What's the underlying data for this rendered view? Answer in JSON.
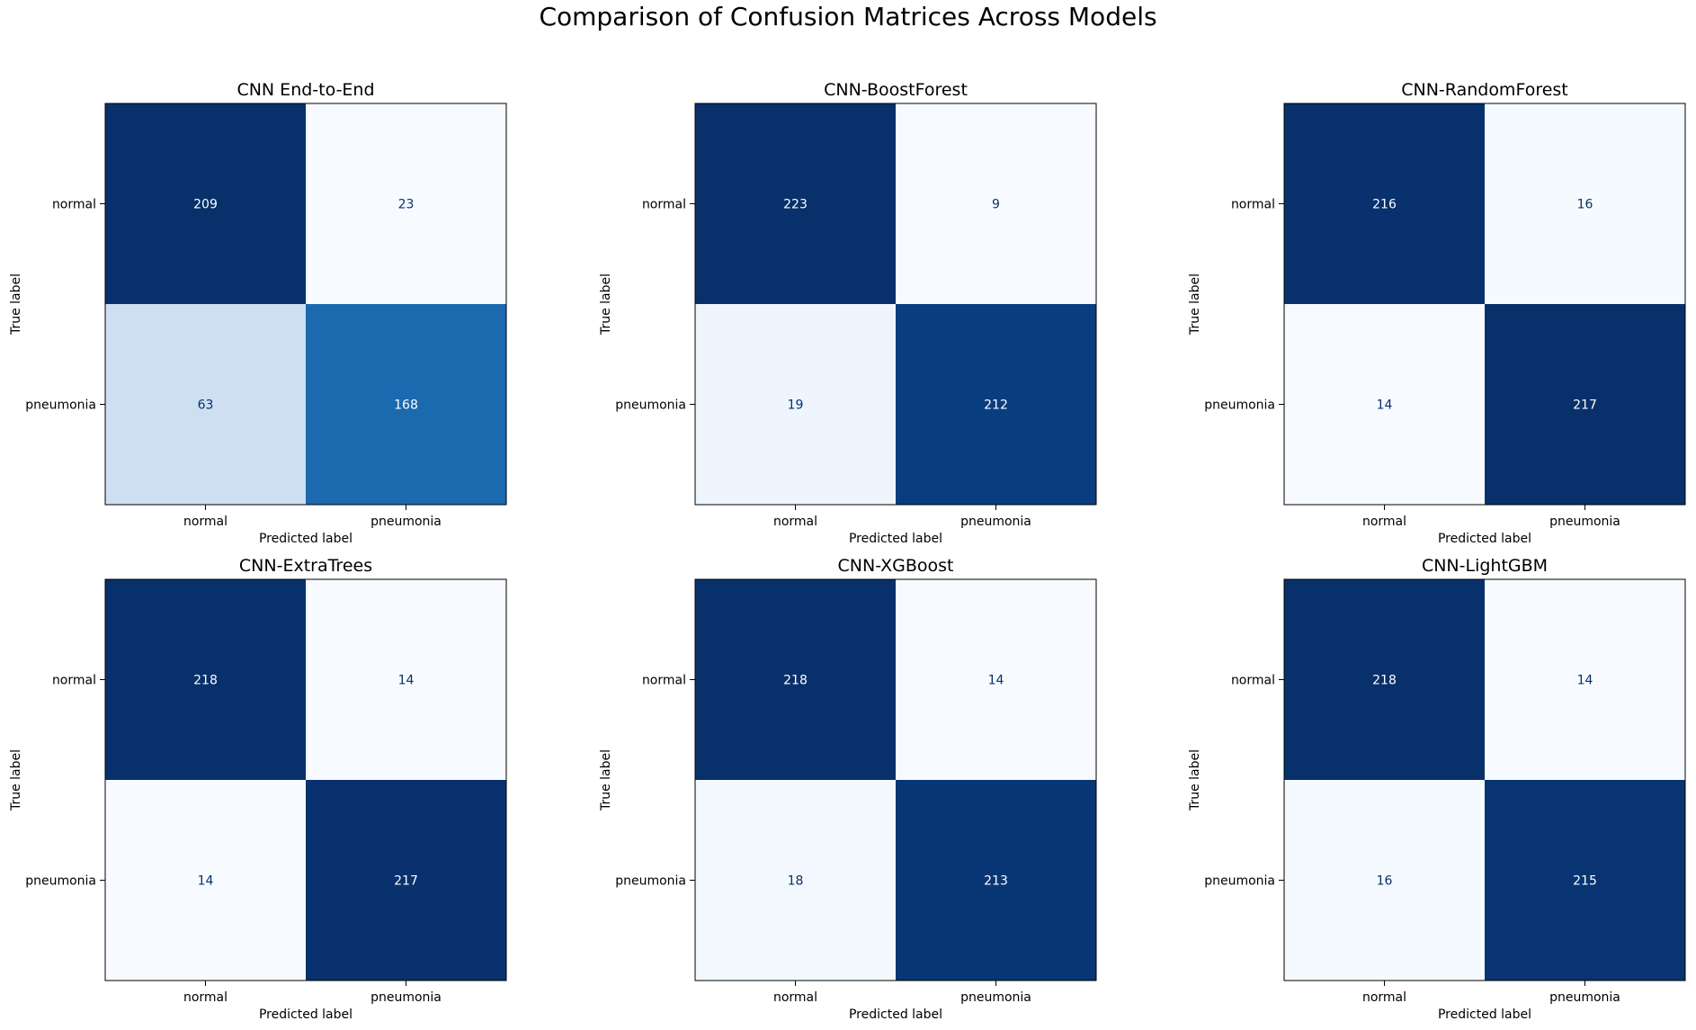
{
  "figure": {
    "title": "Comparison of Confusion Matrices Across Models"
  },
  "colormap": {
    "name": "Blues",
    "light": "#f7fbff",
    "dark": "#08306b",
    "text_on_light": "#08306b",
    "text_on_dark": "#ffffff"
  },
  "chart_data": [
    {
      "type": "heatmap",
      "title": "CNN End-to-End",
      "xlabel": "Predicted label",
      "ylabel": "True label",
      "x_categories": [
        "normal",
        "pneumonia"
      ],
      "y_categories": [
        "normal",
        "pneumonia"
      ],
      "values": [
        [
          209,
          23
        ],
        [
          63,
          168
        ]
      ]
    },
    {
      "type": "heatmap",
      "title": "CNN-BoostForest",
      "xlabel": "Predicted label",
      "ylabel": "True label",
      "x_categories": [
        "normal",
        "pneumonia"
      ],
      "y_categories": [
        "normal",
        "pneumonia"
      ],
      "values": [
        [
          223,
          9
        ],
        [
          19,
          212
        ]
      ]
    },
    {
      "type": "heatmap",
      "title": "CNN-RandomForest",
      "xlabel": "Predicted label",
      "ylabel": "True label",
      "x_categories": [
        "normal",
        "pneumonia"
      ],
      "y_categories": [
        "normal",
        "pneumonia"
      ],
      "values": [
        [
          216,
          16
        ],
        [
          14,
          217
        ]
      ]
    },
    {
      "type": "heatmap",
      "title": "CNN-ExtraTrees",
      "xlabel": "Predicted label",
      "ylabel": "True label",
      "x_categories": [
        "normal",
        "pneumonia"
      ],
      "y_categories": [
        "normal",
        "pneumonia"
      ],
      "values": [
        [
          218,
          14
        ],
        [
          14,
          217
        ]
      ]
    },
    {
      "type": "heatmap",
      "title": "CNN-XGBoost",
      "xlabel": "Predicted label",
      "ylabel": "True label",
      "x_categories": [
        "normal",
        "pneumonia"
      ],
      "y_categories": [
        "normal",
        "pneumonia"
      ],
      "values": [
        [
          218,
          14
        ],
        [
          18,
          213
        ]
      ]
    },
    {
      "type": "heatmap",
      "title": "CNN-LightGBM",
      "xlabel": "Predicted label",
      "ylabel": "True label",
      "x_categories": [
        "normal",
        "pneumonia"
      ],
      "y_categories": [
        "normal",
        "pneumonia"
      ],
      "values": [
        [
          218,
          14
        ],
        [
          16,
          215
        ]
      ]
    }
  ]
}
